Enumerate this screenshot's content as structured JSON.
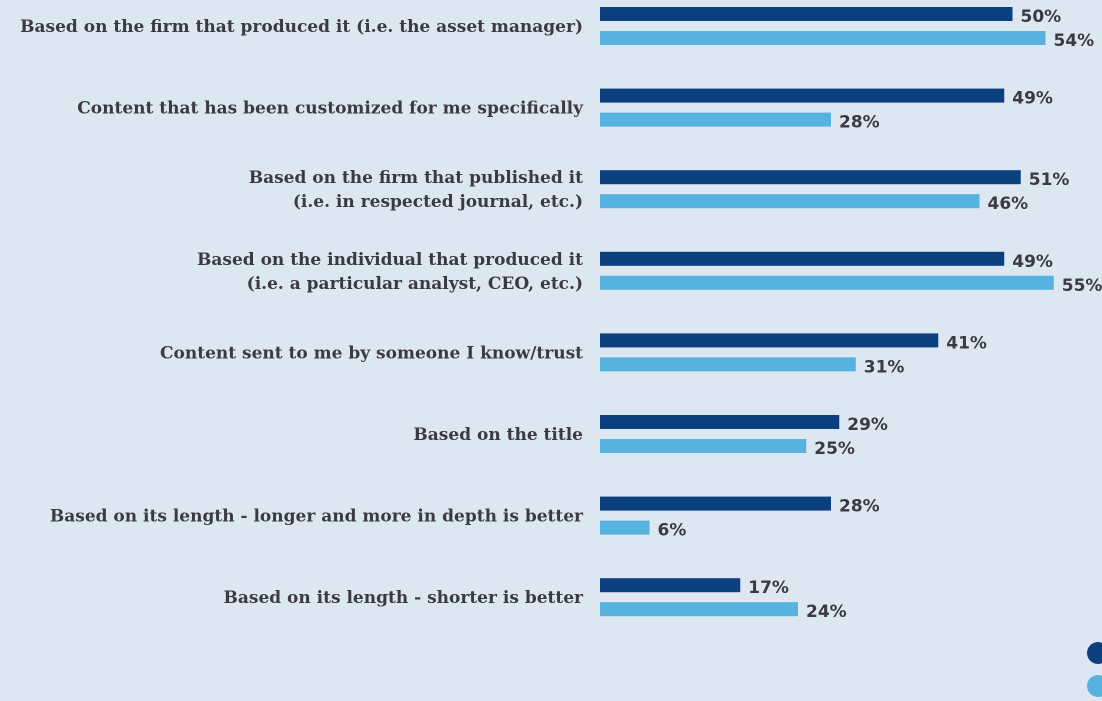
{
  "chart_data": {
    "type": "bar",
    "orientation": "horizontal",
    "categories": [
      [
        "Based on the firm that produced it (i.e. the asset manager)"
      ],
      [
        "Content that has been customized for me specifically"
      ],
      [
        "Based on the firm that published it",
        "(i.e. in respected journal, etc.)"
      ],
      [
        "Based on the individual that produced it",
        "(i.e. a particular analyst, CEO, etc.)"
      ],
      [
        "Content sent to me by someone I know/trust"
      ],
      [
        "Based on the title"
      ],
      [
        "Based on its length - longer and more in depth is better"
      ],
      [
        "Based on its length - shorter is better"
      ]
    ],
    "series": [
      {
        "color": "#0b3f7e",
        "values": [
          50,
          49,
          51,
          49,
          41,
          29,
          28,
          17
        ],
        "value_labels": [
          "50%",
          "49%",
          "51%",
          "49%",
          "41%",
          "29%",
          "28%",
          "17%"
        ]
      },
      {
        "color": "#58b2e0",
        "values": [
          54,
          28,
          46,
          55,
          31,
          25,
          6,
          24
        ],
        "value_labels": [
          "54%",
          "28%",
          "46%",
          "55%",
          "31%",
          "25%",
          "6%",
          "24%"
        ]
      }
    ],
    "xlim": [
      0,
      100
    ],
    "grid": false,
    "legend": "bottom-right"
  }
}
